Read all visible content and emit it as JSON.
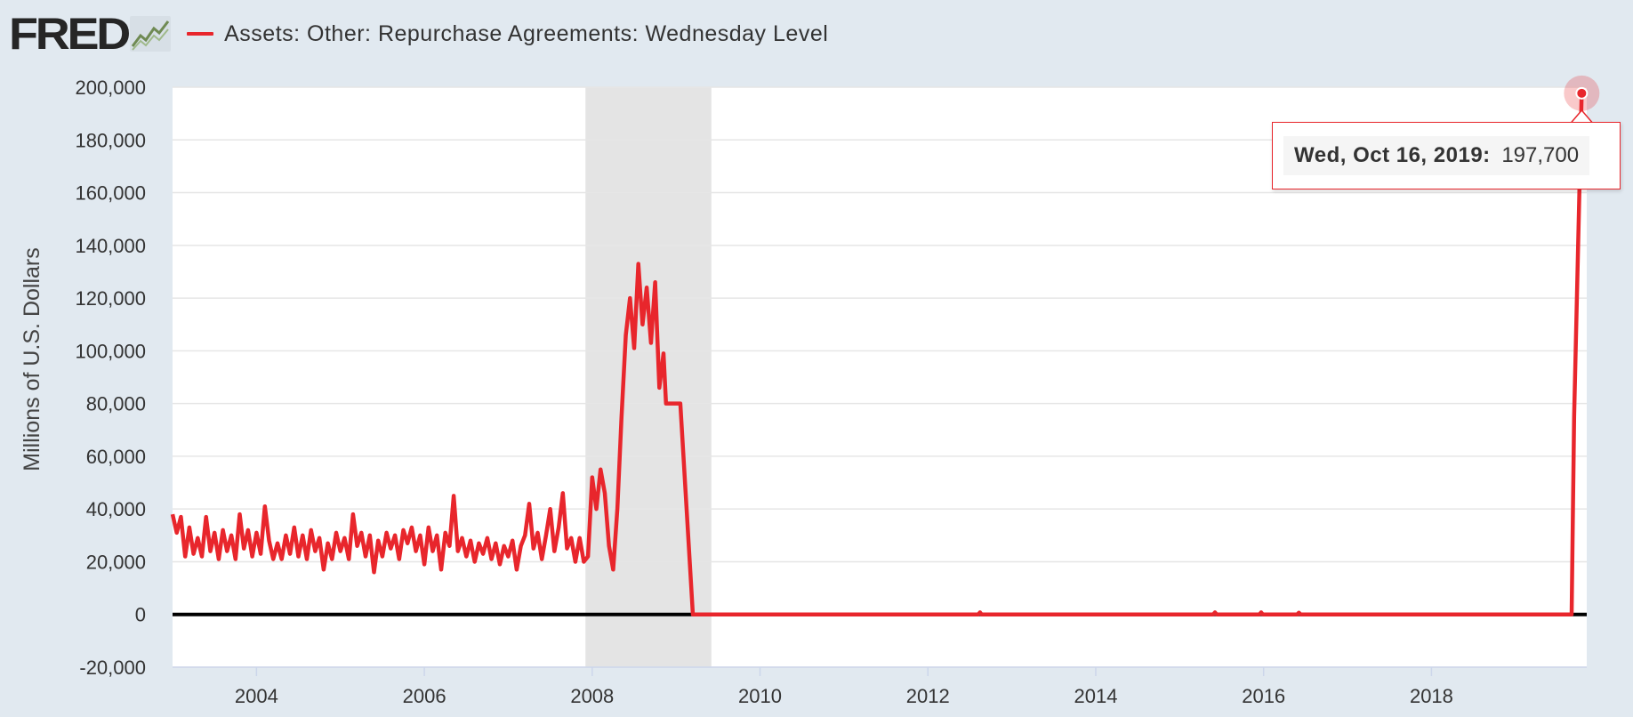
{
  "header": {
    "logo_text": "FRED",
    "series_label": "Assets: Other: Repurchase Agreements: Wednesday Level"
  },
  "tooltip": {
    "date": "Wed, Oct 16, 2019:",
    "value": "197,700"
  },
  "colors": {
    "series": "#e8262c",
    "recession": "#e4e4e4",
    "background": "#e1e9f0",
    "plot": "#ffffff"
  },
  "chart_data": {
    "type": "line",
    "title": "",
    "ylabel": "Millions of U.S. Dollars",
    "xlabel": "",
    "ylim": [
      -20000,
      200000
    ],
    "xlim": [
      2003.0,
      2019.85
    ],
    "y_ticks": [
      -20000,
      0,
      20000,
      40000,
      60000,
      80000,
      100000,
      120000,
      140000,
      160000,
      180000,
      200000
    ],
    "y_tick_labels": [
      "-20,000",
      "0",
      "20,000",
      "40,000",
      "60,000",
      "80,000",
      "100,000",
      "120,000",
      "140,000",
      "160,000",
      "180,000",
      "200,000"
    ],
    "x_ticks": [
      2004,
      2006,
      2008,
      2010,
      2012,
      2014,
      2016,
      2018
    ],
    "x_tick_labels": [
      "2004",
      "2006",
      "2008",
      "2010",
      "2012",
      "2014",
      "2016",
      "2018"
    ],
    "recessions": [
      [
        2007.92,
        2009.42
      ]
    ],
    "series": [
      {
        "name": "Assets: Other: Repurchase Agreements: Wednesday Level",
        "points": [
          [
            2003.0,
            38000
          ],
          [
            2003.05,
            31000
          ],
          [
            2003.1,
            37000
          ],
          [
            2003.15,
            22000
          ],
          [
            2003.2,
            33000
          ],
          [
            2003.25,
            23000
          ],
          [
            2003.3,
            29000
          ],
          [
            2003.35,
            22000
          ],
          [
            2003.4,
            37000
          ],
          [
            2003.45,
            24000
          ],
          [
            2003.5,
            31000
          ],
          [
            2003.55,
            21000
          ],
          [
            2003.6,
            32000
          ],
          [
            2003.65,
            24000
          ],
          [
            2003.7,
            30000
          ],
          [
            2003.75,
            21000
          ],
          [
            2003.8,
            38000
          ],
          [
            2003.85,
            25000
          ],
          [
            2003.9,
            32000
          ],
          [
            2003.95,
            22000
          ],
          [
            2004.0,
            31000
          ],
          [
            2004.05,
            23000
          ],
          [
            2004.1,
            41000
          ],
          [
            2004.15,
            28000
          ],
          [
            2004.2,
            21000
          ],
          [
            2004.25,
            27000
          ],
          [
            2004.3,
            21000
          ],
          [
            2004.35,
            30000
          ],
          [
            2004.4,
            23000
          ],
          [
            2004.45,
            33000
          ],
          [
            2004.5,
            22000
          ],
          [
            2004.55,
            30000
          ],
          [
            2004.6,
            21000
          ],
          [
            2004.65,
            32000
          ],
          [
            2004.7,
            24000
          ],
          [
            2004.75,
            29000
          ],
          [
            2004.8,
            17000
          ],
          [
            2004.85,
            27000
          ],
          [
            2004.9,
            21000
          ],
          [
            2004.95,
            31000
          ],
          [
            2005.0,
            24000
          ],
          [
            2005.05,
            29000
          ],
          [
            2005.1,
            21000
          ],
          [
            2005.15,
            38000
          ],
          [
            2005.2,
            26000
          ],
          [
            2005.25,
            31000
          ],
          [
            2005.3,
            22000
          ],
          [
            2005.35,
            30000
          ],
          [
            2005.4,
            16000
          ],
          [
            2005.45,
            28000
          ],
          [
            2005.5,
            22000
          ],
          [
            2005.55,
            31000
          ],
          [
            2005.6,
            25000
          ],
          [
            2005.65,
            30000
          ],
          [
            2005.7,
            21000
          ],
          [
            2005.75,
            32000
          ],
          [
            2005.8,
            27000
          ],
          [
            2005.85,
            33000
          ],
          [
            2005.9,
            24000
          ],
          [
            2005.95,
            30000
          ],
          [
            2006.0,
            19000
          ],
          [
            2006.05,
            33000
          ],
          [
            2006.1,
            24000
          ],
          [
            2006.15,
            30000
          ],
          [
            2006.2,
            17000
          ],
          [
            2006.25,
            31000
          ],
          [
            2006.3,
            26000
          ],
          [
            2006.35,
            45000
          ],
          [
            2006.4,
            24000
          ],
          [
            2006.45,
            29000
          ],
          [
            2006.5,
            22000
          ],
          [
            2006.55,
            28000
          ],
          [
            2006.6,
            20000
          ],
          [
            2006.65,
            27000
          ],
          [
            2006.7,
            23000
          ],
          [
            2006.75,
            29000
          ],
          [
            2006.8,
            21000
          ],
          [
            2006.85,
            27000
          ],
          [
            2006.9,
            19000
          ],
          [
            2006.95,
            26000
          ],
          [
            2007.0,
            22000
          ],
          [
            2007.05,
            28000
          ],
          [
            2007.1,
            17000
          ],
          [
            2007.15,
            26000
          ],
          [
            2007.2,
            30000
          ],
          [
            2007.25,
            42000
          ],
          [
            2007.3,
            25000
          ],
          [
            2007.35,
            31000
          ],
          [
            2007.4,
            21000
          ],
          [
            2007.45,
            30000
          ],
          [
            2007.5,
            40000
          ],
          [
            2007.55,
            24000
          ],
          [
            2007.6,
            33000
          ],
          [
            2007.65,
            46000
          ],
          [
            2007.7,
            25000
          ],
          [
            2007.75,
            29000
          ],
          [
            2007.8,
            20000
          ],
          [
            2007.85,
            29000
          ],
          [
            2007.9,
            20000
          ],
          [
            2007.95,
            22000
          ],
          [
            2008.0,
            52000
          ],
          [
            2008.05,
            40000
          ],
          [
            2008.1,
            55000
          ],
          [
            2008.15,
            46000
          ],
          [
            2008.2,
            26000
          ],
          [
            2008.25,
            17000
          ],
          [
            2008.3,
            40000
          ],
          [
            2008.35,
            75000
          ],
          [
            2008.4,
            106000
          ],
          [
            2008.45,
            120000
          ],
          [
            2008.5,
            101000
          ],
          [
            2008.55,
            133000
          ],
          [
            2008.6,
            110000
          ],
          [
            2008.65,
            124000
          ],
          [
            2008.7,
            103000
          ],
          [
            2008.75,
            126000
          ],
          [
            2008.8,
            86000
          ],
          [
            2008.85,
            99000
          ],
          [
            2008.88,
            80000
          ],
          [
            2009.05,
            80000
          ],
          [
            2009.2,
            0
          ],
          [
            2012.6,
            0
          ],
          [
            2012.62,
            800
          ],
          [
            2012.64,
            0
          ],
          [
            2015.4,
            0
          ],
          [
            2015.42,
            800
          ],
          [
            2015.44,
            0
          ],
          [
            2015.95,
            0
          ],
          [
            2015.97,
            800
          ],
          [
            2015.99,
            0
          ],
          [
            2016.4,
            0
          ],
          [
            2016.42,
            700
          ],
          [
            2016.44,
            0
          ],
          [
            2019.67,
            0
          ],
          [
            2019.7,
            75000
          ],
          [
            2019.79,
            197700
          ]
        ]
      }
    ]
  }
}
